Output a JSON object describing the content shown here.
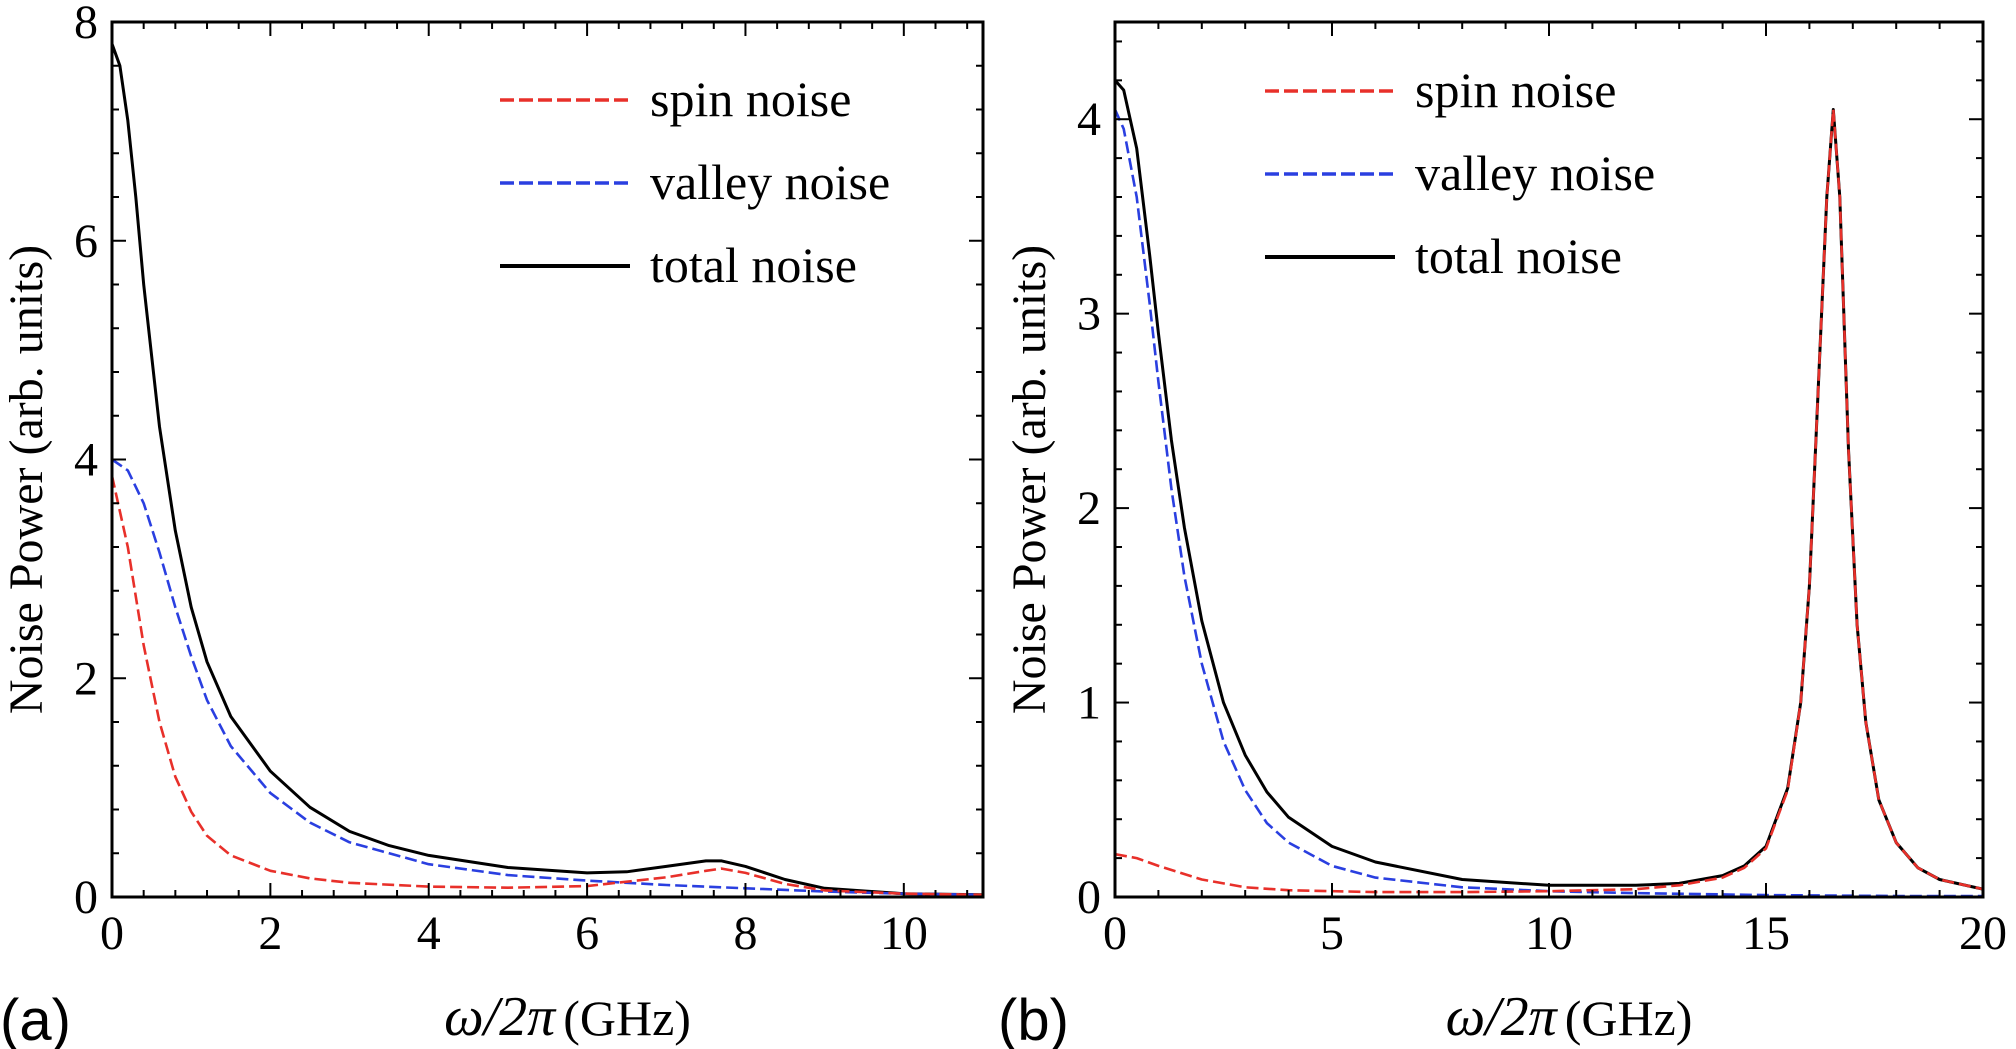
{
  "chart_data": [
    {
      "panel_label": "(a)",
      "type": "line",
      "xlabel_symbol": "ω/2π",
      "xlabel_unit": "(GHz)",
      "ylabel": "Noise Power (arb. units)",
      "xlim": [
        0,
        11
      ],
      "ylim": [
        0,
        8
      ],
      "xticks": [
        0,
        2,
        4,
        6,
        8,
        10
      ],
      "yticks": [
        0,
        2,
        4,
        6,
        8
      ],
      "grid": false,
      "legend_position": "top-right",
      "series": [
        {
          "name": "spin noise",
          "color": "#e8302a",
          "dash": "dashed",
          "x": [
            0,
            0.2,
            0.4,
            0.6,
            0.8,
            1.0,
            1.2,
            1.5,
            2,
            2.5,
            3,
            4,
            5,
            6,
            7,
            7.5,
            7.7,
            8,
            8.5,
            9,
            10,
            11
          ],
          "y": [
            3.85,
            3.2,
            2.3,
            1.6,
            1.1,
            0.78,
            0.56,
            0.38,
            0.24,
            0.17,
            0.13,
            0.095,
            0.085,
            0.1,
            0.18,
            0.24,
            0.26,
            0.22,
            0.12,
            0.06,
            0.03,
            0.02
          ]
        },
        {
          "name": "valley noise",
          "color": "#2a3fe0",
          "dash": "dashed",
          "x": [
            0,
            0.2,
            0.4,
            0.6,
            0.8,
            1.0,
            1.2,
            1.5,
            2,
            2.5,
            3,
            4,
            5,
            6,
            7,
            8,
            9,
            10,
            11
          ],
          "y": [
            4.0,
            3.9,
            3.6,
            3.15,
            2.65,
            2.2,
            1.8,
            1.38,
            0.95,
            0.68,
            0.5,
            0.3,
            0.2,
            0.15,
            0.11,
            0.08,
            0.05,
            0.03,
            0.02
          ]
        },
        {
          "name": "total noise",
          "color": "#000000",
          "dash": "solid",
          "x": [
            0,
            0.1,
            0.2,
            0.3,
            0.4,
            0.6,
            0.8,
            1.0,
            1.2,
            1.5,
            2,
            2.5,
            3,
            3.5,
            4,
            5,
            6,
            6.5,
            7,
            7.5,
            7.7,
            8,
            8.5,
            9,
            10,
            11
          ],
          "y": [
            7.8,
            7.6,
            7.1,
            6.4,
            5.6,
            4.3,
            3.35,
            2.65,
            2.15,
            1.65,
            1.15,
            0.82,
            0.6,
            0.47,
            0.38,
            0.27,
            0.22,
            0.23,
            0.28,
            0.33,
            0.33,
            0.28,
            0.16,
            0.08,
            0.03,
            0.02
          ]
        }
      ]
    },
    {
      "panel_label": "(b)",
      "type": "line",
      "xlabel_symbol": "ω/2π",
      "xlabel_unit": "(GHz)",
      "ylabel": "Noise Power (arb. units)",
      "xlim": [
        0,
        20
      ],
      "ylim": [
        0,
        4.5
      ],
      "xticks": [
        0,
        5,
        10,
        15,
        20
      ],
      "yticks": [
        0,
        1,
        2,
        3,
        4
      ],
      "grid": false,
      "legend_position": "top-left",
      "series": [
        {
          "name": "spin noise",
          "color": "#e8302a",
          "dash": "dashed",
          "x": [
            0,
            0.5,
            1,
            2,
            3,
            4,
            6,
            8,
            10,
            12,
            13,
            14,
            14.5,
            15,
            15.5,
            15.8,
            16.0,
            16.2,
            16.4,
            16.55,
            16.7,
            16.9,
            17.1,
            17.3,
            17.6,
            18,
            18.5,
            19,
            20
          ],
          "y": [
            0.22,
            0.2,
            0.16,
            0.09,
            0.05,
            0.035,
            0.025,
            0.025,
            0.03,
            0.04,
            0.06,
            0.1,
            0.15,
            0.25,
            0.55,
            1.0,
            1.6,
            2.6,
            3.6,
            4.05,
            3.6,
            2.3,
            1.4,
            0.9,
            0.5,
            0.28,
            0.15,
            0.09,
            0.04
          ]
        },
        {
          "name": "valley noise",
          "color": "#2a3fe0",
          "dash": "dashed",
          "x": [
            0,
            0.2,
            0.5,
            0.8,
            1.0,
            1.3,
            1.6,
            2,
            2.5,
            3,
            3.5,
            4,
            5,
            6,
            8,
            10,
            12,
            15,
            18,
            20
          ],
          "y": [
            4.05,
            3.95,
            3.6,
            3.05,
            2.65,
            2.1,
            1.65,
            1.2,
            0.8,
            0.55,
            0.38,
            0.28,
            0.16,
            0.1,
            0.05,
            0.03,
            0.02,
            0.01,
            0.005,
            0.005
          ]
        },
        {
          "name": "total noise",
          "color": "#000000",
          "dash": "solid",
          "x": [
            0,
            0.2,
            0.5,
            0.8,
            1.0,
            1.3,
            1.6,
            2,
            2.5,
            3,
            3.5,
            4,
            5,
            6,
            8,
            10,
            12,
            13,
            14,
            14.5,
            15,
            15.5,
            15.8,
            16.0,
            16.2,
            16.4,
            16.55,
            16.7,
            16.9,
            17.1,
            17.3,
            17.6,
            18,
            18.5,
            19,
            20
          ],
          "y": [
            4.2,
            4.15,
            3.85,
            3.3,
            2.9,
            2.35,
            1.9,
            1.42,
            1.0,
            0.73,
            0.54,
            0.41,
            0.26,
            0.18,
            0.09,
            0.06,
            0.06,
            0.07,
            0.11,
            0.16,
            0.26,
            0.56,
            1.0,
            1.6,
            2.6,
            3.6,
            4.05,
            3.6,
            2.3,
            1.4,
            0.9,
            0.5,
            0.28,
            0.15,
            0.09,
            0.04
          ]
        }
      ]
    }
  ]
}
